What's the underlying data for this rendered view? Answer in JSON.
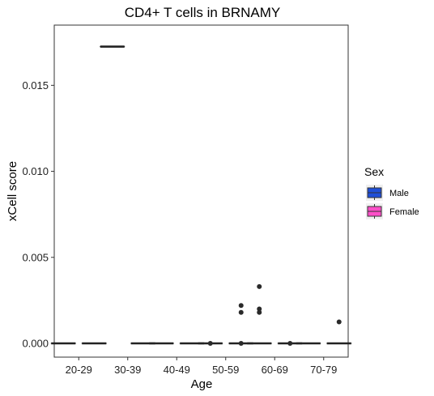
{
  "chart_data": {
    "type": "boxplot",
    "title": "CD4+ T cells in BRNAMY",
    "xlabel": "Age",
    "ylabel": "xCell score",
    "categories": [
      "20-29",
      "30-39",
      "40-49",
      "50-59",
      "60-69",
      "70-79"
    ],
    "ylim": [
      -0.0008,
      0.0185
    ],
    "yticks": [
      0.0,
      0.005,
      0.01,
      0.015
    ],
    "ytick_labels": [
      "0.000",
      "0.005",
      "0.010",
      "0.015"
    ],
    "grid": false,
    "legend": {
      "title": "Sex",
      "position": "right"
    },
    "series": [
      {
        "name": "Male",
        "color": "#1f4fd8",
        "boxes": [
          {
            "category": "20-29",
            "median": 0.0,
            "q1": 0.0,
            "q3": 0.0,
            "whisker_low": 0.0,
            "whisker_high": 0.0,
            "outliers": []
          },
          {
            "category": "30-39",
            "median": 0.01725,
            "q1": 0.01725,
            "q3": 0.01725,
            "whisker_low": 0.01725,
            "whisker_high": 0.01725,
            "outliers": []
          },
          {
            "category": "40-49",
            "median": 0.0,
            "q1": 0.0,
            "q3": 0.0,
            "whisker_low": 0.0,
            "whisker_high": 0.0,
            "outliers": []
          },
          {
            "category": "50-59",
            "median": 0.0,
            "q1": 0.0,
            "q3": 0.0,
            "whisker_low": 0.0,
            "whisker_high": 0.0,
            "outliers": [
              0.0
            ]
          },
          {
            "category": "60-69",
            "median": 0.0,
            "q1": 0.0,
            "q3": 0.0,
            "whisker_low": 0.0,
            "whisker_high": 0.0,
            "outliers": [
              0.0033,
              0.002,
              0.0018
            ]
          },
          {
            "category": "70-79",
            "median": 0.0,
            "q1": 0.0,
            "q3": 0.0,
            "whisker_low": 0.0,
            "whisker_high": 0.0,
            "outliers": []
          }
        ]
      },
      {
        "name": "Female",
        "color": "#ff4fc8",
        "boxes": [
          {
            "category": "20-29",
            "median": 0.0,
            "q1": 0.0,
            "q3": 0.0,
            "whisker_low": 0.0,
            "whisker_high": 0.0,
            "outliers": []
          },
          {
            "category": "30-39",
            "median": 0.0,
            "q1": 0.0,
            "q3": 0.0,
            "whisker_low": 0.0,
            "whisker_high": 0.0,
            "outliers": []
          },
          {
            "category": "40-49",
            "median": 0.0,
            "q1": 0.0,
            "q3": 0.0,
            "whisker_low": 0.0,
            "whisker_high": 0.0,
            "outliers": []
          },
          {
            "category": "50-59",
            "median": 0.0,
            "q1": 0.0,
            "q3": 0.0,
            "whisker_low": 0.0,
            "whisker_high": 0.0,
            "outliers": [
              0.0022,
              0.0018,
              0.0
            ]
          },
          {
            "category": "60-69",
            "median": 0.0,
            "q1": 0.0,
            "q3": 0.0,
            "whisker_low": 0.0,
            "whisker_high": 0.0,
            "outliers": [
              0.0
            ]
          },
          {
            "category": "70-79",
            "median": 0.0,
            "q1": 0.0,
            "q3": 0.0,
            "whisker_low": 0.0,
            "whisker_high": 0.0,
            "outliers": [
              0.00125
            ]
          }
        ]
      }
    ]
  }
}
